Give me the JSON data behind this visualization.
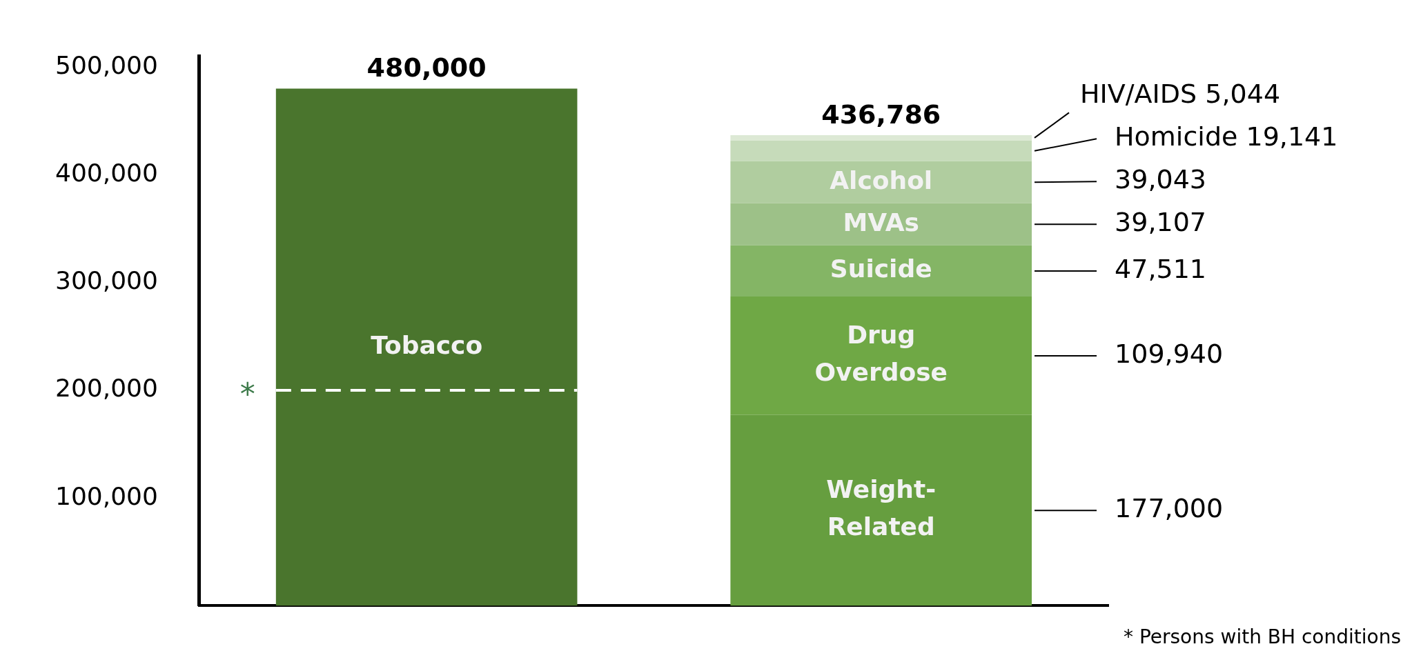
{
  "chart_data": {
    "type": "bar",
    "stacked": true,
    "categories": [
      null,
      null
    ],
    "series": [
      {
        "name": "Tobacco",
        "color": "#4a752d",
        "values": [
          480000,
          null
        ],
        "value_labels": [
          null,
          null
        ]
      },
      {
        "name": "Weight-Related",
        "color": "#669e3f",
        "values": [
          null,
          177000
        ],
        "value_labels": [
          null,
          "177,000"
        ]
      },
      {
        "name": "Drug Overdose",
        "color": "#6fa845",
        "values": [
          null,
          109940
        ],
        "value_labels": [
          null,
          "109,940"
        ]
      },
      {
        "name": "Suicide",
        "color": "#84b565",
        "values": [
          null,
          47511
        ],
        "value_labels": [
          null,
          "47,511"
        ]
      },
      {
        "name": "MVAs",
        "color": "#9dc188",
        "values": [
          null,
          39107
        ],
        "value_labels": [
          null,
          "39,107"
        ]
      },
      {
        "name": "Alcohol",
        "color": "#b0cd9f",
        "values": [
          null,
          39043
        ],
        "value_labels": [
          null,
          "39,043"
        ]
      },
      {
        "name": "Homicide",
        "color": "#c6dbba",
        "values": [
          null,
          19141
        ],
        "value_labels": [
          null,
          "19,141"
        ]
      },
      {
        "name": "HIV/AIDS",
        "color": "#dde9d5",
        "values": [
          null,
          5044
        ],
        "value_labels": [
          null,
          "5,044"
        ]
      }
    ],
    "totals": [
      "480,000",
      "436,786"
    ],
    "ylim": [
      0,
      510000
    ],
    "yticks": [
      {
        "value": 100000,
        "label": "100,000"
      },
      {
        "value": 200000,
        "label": "200,000"
      },
      {
        "value": 300000,
        "label": "300,000"
      },
      {
        "value": 400000,
        "label": "400,000"
      },
      {
        "value": 500000,
        "label": "500,000"
      }
    ],
    "grid": false,
    "legend": false,
    "tick_labels": "y",
    "ref_lines": [
      {
        "axis": "y",
        "value": 200000,
        "label": "*",
        "color": "#ffffff",
        "line_style": "dashed"
      }
    ],
    "annotations": [
      "* Persons with BH conditions"
    ]
  }
}
